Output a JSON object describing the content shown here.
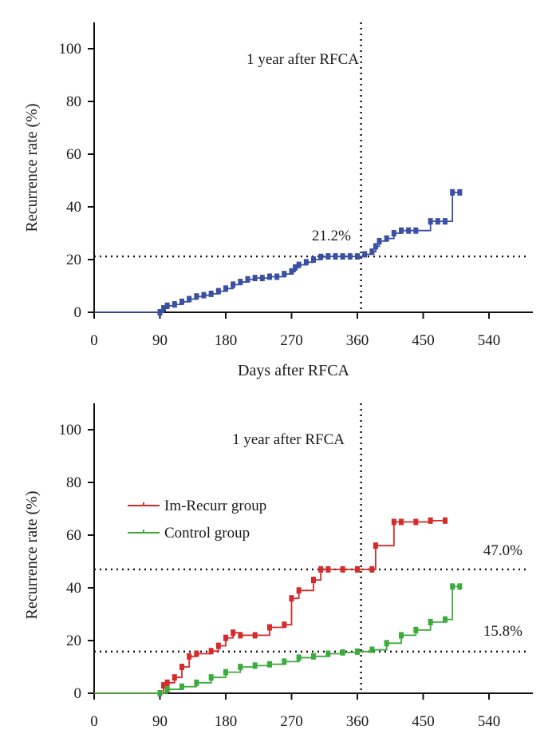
{
  "chart_data": [
    {
      "type": "line",
      "step": true,
      "xlabel": "Days after RFCA",
      "ylabel": "Recurrence rate (%)",
      "xlim": [
        0,
        600
      ],
      "ylim": [
        0,
        110
      ],
      "xticks": [
        0,
        90,
        180,
        270,
        360,
        450,
        540
      ],
      "yticks": [
        0,
        20,
        40,
        60,
        80,
        100
      ],
      "annotations": {
        "vline": {
          "x": 365,
          "label": "1 year after RFCA"
        },
        "hlines": [
          {
            "y": 21.2,
            "label": "21.2%"
          }
        ]
      },
      "series": [
        {
          "color": "#3b4fa3",
          "x": [
            0,
            90,
            95,
            100,
            110,
            120,
            130,
            140,
            150,
            160,
            170,
            180,
            190,
            200,
            210,
            220,
            230,
            240,
            250,
            260,
            270,
            275,
            280,
            290,
            300,
            310,
            320,
            330,
            340,
            350,
            360,
            370,
            380,
            385,
            390,
            400,
            410,
            420,
            430,
            440,
            460,
            470,
            480,
            490,
            500
          ],
          "y": [
            0,
            0,
            1.5,
            2.5,
            3,
            4,
            5,
            6,
            6.5,
            7,
            8,
            9,
            10.5,
            11.5,
            12.5,
            13,
            13,
            13.5,
            13.5,
            14.5,
            15.5,
            17,
            18,
            19,
            20,
            21,
            21.2,
            21.2,
            21.2,
            21.2,
            21.2,
            22,
            23,
            25,
            27,
            28,
            30,
            31,
            31,
            31,
            34.5,
            34.5,
            34.5,
            45.5,
            45.5
          ]
        }
      ]
    },
    {
      "type": "line",
      "step": true,
      "xlabel": "",
      "ylabel": "Recurrence rate (%)",
      "xlim": [
        0,
        600
      ],
      "ylim": [
        0,
        110
      ],
      "xticks": [
        0,
        90,
        180,
        270,
        360,
        450,
        540
      ],
      "yticks": [
        0,
        20,
        40,
        60,
        80,
        100
      ],
      "legend_position": "center-left",
      "annotations": {
        "vline": {
          "x": 365,
          "label": "1 year after RFCA"
        },
        "hlines": [
          {
            "y": 47.0,
            "label": "47.0%"
          },
          {
            "y": 15.8,
            "label": "15.8%"
          }
        ]
      },
      "series": [
        {
          "name": "Im-Recurr group",
          "color": "#d62b2b",
          "x": [
            0,
            90,
            95,
            100,
            110,
            120,
            130,
            140,
            160,
            170,
            180,
            190,
            200,
            220,
            240,
            260,
            270,
            280,
            300,
            310,
            320,
            340,
            360,
            380,
            385,
            410,
            420,
            440,
            460,
            480
          ],
          "y": [
            0,
            0,
            3,
            4,
            6,
            10,
            14,
            15,
            16,
            18,
            21,
            23,
            22,
            22,
            25,
            26,
            36,
            39,
            43,
            47,
            47,
            47,
            47,
            47,
            56,
            65,
            65,
            65,
            65.5,
            65.5
          ]
        },
        {
          "name": "Control group",
          "color": "#3caa3c",
          "x": [
            0,
            90,
            100,
            120,
            140,
            160,
            180,
            200,
            220,
            240,
            260,
            280,
            300,
            320,
            340,
            360,
            380,
            400,
            420,
            440,
            460,
            480,
            490,
            500
          ],
          "y": [
            0,
            0,
            1.5,
            2.5,
            4,
            6,
            8,
            10,
            10.5,
            11,
            12,
            13.5,
            14,
            15,
            15.5,
            15.8,
            16.5,
            19,
            22,
            24,
            27,
            28,
            40.5,
            40.5
          ]
        }
      ]
    }
  ]
}
